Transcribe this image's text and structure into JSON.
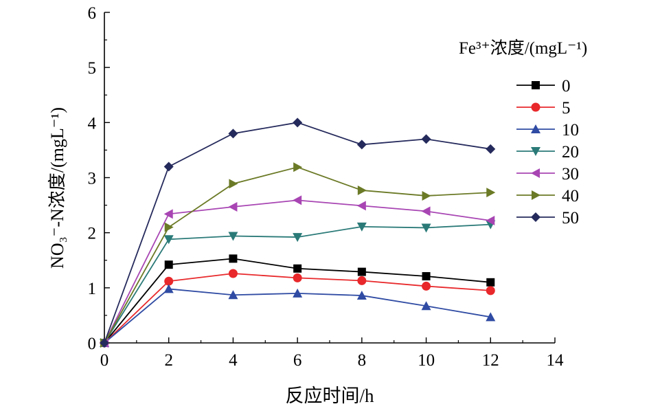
{
  "chart_data": {
    "type": "line",
    "xlabel": "反应时间/h",
    "ylabel": "NO₃⁻-N浓度/(mgL⁻¹)",
    "xlim": [
      0,
      14
    ],
    "ylim": [
      0,
      6
    ],
    "xticks": [
      0,
      2,
      4,
      6,
      8,
      10,
      12,
      14
    ],
    "yticks": [
      0,
      1,
      2,
      3,
      4,
      5,
      6
    ],
    "grid": false,
    "legend_title": "Fe³⁺浓度/(mgL⁻¹)",
    "legend_position": "right",
    "x": [
      0,
      2,
      4,
      6,
      8,
      10,
      12
    ],
    "series": [
      {
        "name": "0",
        "color": "#000000",
        "marker": "square",
        "values": [
          0,
          1.42,
          1.53,
          1.35,
          1.29,
          1.21,
          1.1
        ]
      },
      {
        "name": "5",
        "color": "#e8282b",
        "marker": "circle",
        "values": [
          0,
          1.12,
          1.26,
          1.18,
          1.13,
          1.03,
          0.95
        ]
      },
      {
        "name": "10",
        "color": "#2f4ba3",
        "marker": "triangle-up",
        "values": [
          0,
          0.98,
          0.87,
          0.9,
          0.86,
          0.67,
          0.47
        ]
      },
      {
        "name": "20",
        "color": "#2a7a78",
        "marker": "triangle-down",
        "values": [
          0,
          1.88,
          1.94,
          1.92,
          2.11,
          2.09,
          2.15
        ]
      },
      {
        "name": "30",
        "color": "#a845b3",
        "marker": "triangle-left",
        "values": [
          0,
          2.34,
          2.47,
          2.59,
          2.49,
          2.39,
          2.22
        ]
      },
      {
        "name": "40",
        "color": "#6b7a26",
        "marker": "triangle-right",
        "values": [
          0,
          2.1,
          2.89,
          3.19,
          2.77,
          2.67,
          2.73
        ]
      },
      {
        "name": "50",
        "color": "#252a5c",
        "marker": "diamond",
        "values": [
          0,
          3.2,
          3.8,
          4.0,
          3.6,
          3.7,
          3.52
        ]
      }
    ]
  }
}
